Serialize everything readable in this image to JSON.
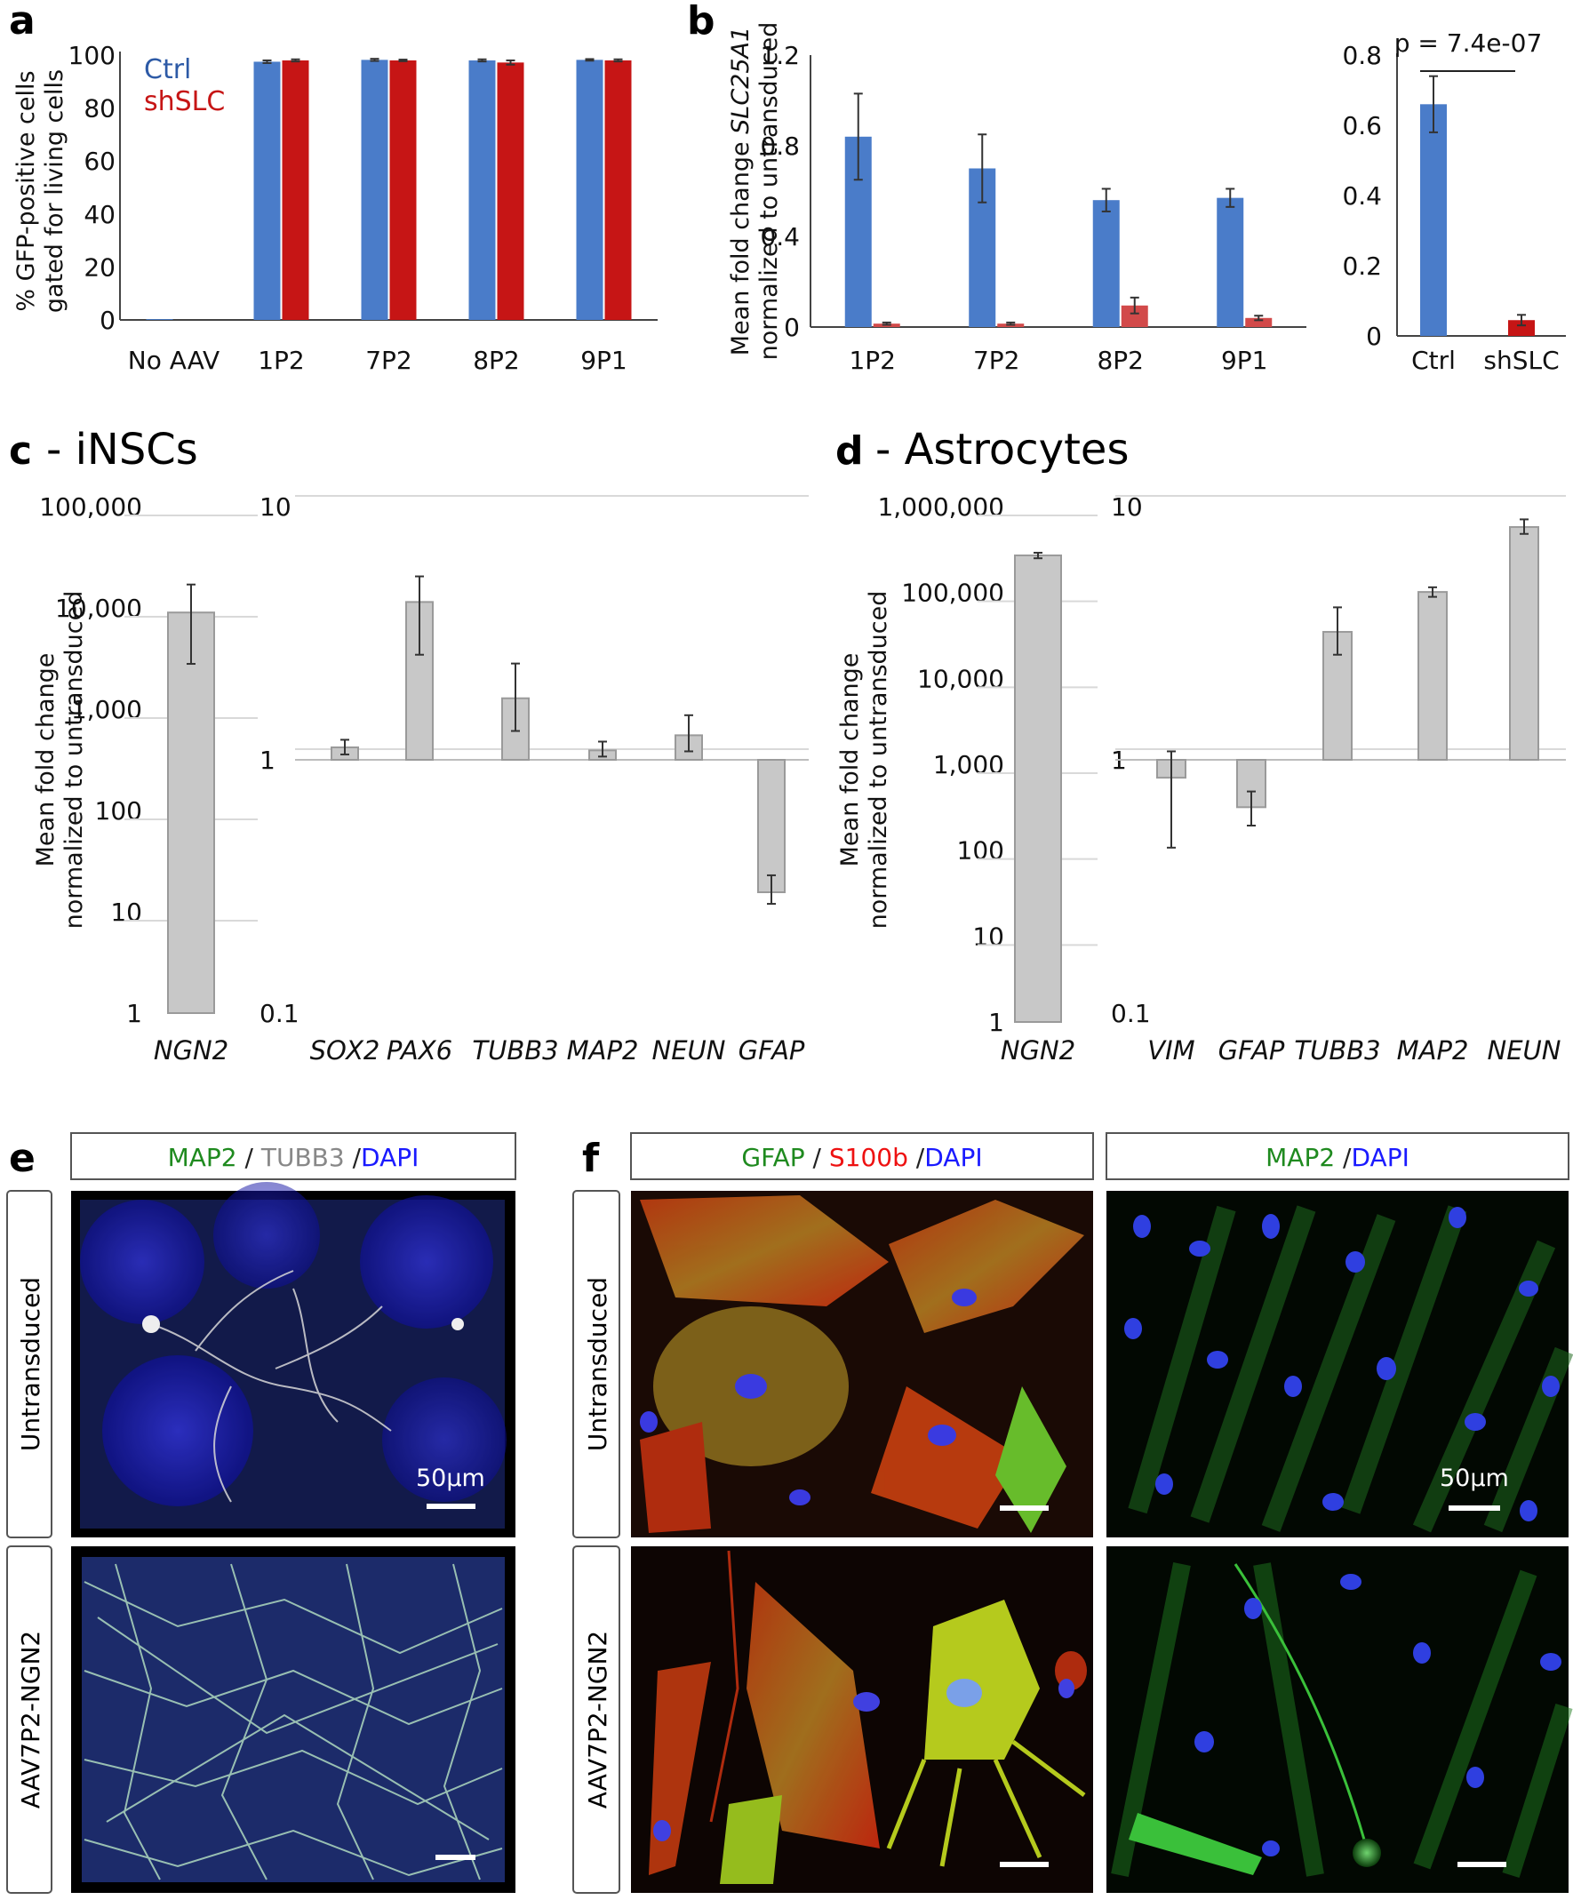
{
  "panel_letters": {
    "a": "a",
    "b": "b",
    "c": "c",
    "d": "d",
    "e": "e",
    "f": "f"
  },
  "titles": {
    "c": "- iNSCs",
    "d": "- Astrocytes"
  },
  "colors": {
    "ctrl": "#4a7cc9",
    "shslc": "#c61515",
    "shslc_light": "#d24a4a",
    "gray_bar": "#c8c8c8",
    "grid": "#d9d9d9",
    "dapi": "#1a1aff",
    "map2": "#1f8a1f",
    "tubb3": "#888888",
    "s100b": "#ee1111",
    "gfap": "#1f8a1f"
  },
  "chart_data": [
    {
      "id": "a",
      "type": "bar",
      "ylabel": "% GFP-positive cells gated for living cells",
      "ylabel_lines": [
        "% GFP-positive cells",
        "gated for living cells"
      ],
      "categories": [
        "No AAV",
        "1P2",
        "7P2",
        "8P2",
        "9P1"
      ],
      "ylim": [
        0,
        100
      ],
      "yticks": [
        "0",
        "20",
        "40",
        "60",
        "80",
        "100"
      ],
      "series": [
        {
          "name": "Ctrl",
          "values": [
            0.3,
            97.5,
            98.2,
            98.0,
            98.2
          ],
          "errors": [
            0,
            0.5,
            0.4,
            0.4,
            0.3
          ]
        },
        {
          "name": "shSLC",
          "values": [
            0,
            98.0,
            98.0,
            97.2,
            98.0
          ],
          "errors": [
            0,
            0.4,
            0.3,
            0.8,
            0.4
          ]
        }
      ]
    },
    {
      "id": "b_left",
      "type": "bar",
      "ylabel": "Mean fold change SLC25A1 normalized to untransduced",
      "ylabel_parts": [
        "Mean fold change ",
        "SLC25A1"
      ],
      "ylabel_line2": "normalized to untransduced",
      "categories": [
        "1P2",
        "7P2",
        "8P2",
        "9P1"
      ],
      "ylim": [
        0,
        1.2
      ],
      "yticks": [
        "0",
        "0.4",
        "0.8",
        "1.2"
      ],
      "series": [
        {
          "name": "Ctrl",
          "values": [
            0.84,
            0.7,
            0.56,
            0.57
          ],
          "errors": [
            0.19,
            0.15,
            0.05,
            0.04
          ]
        },
        {
          "name": "shSLC",
          "values": [
            0.015,
            0.015,
            0.095,
            0.04
          ],
          "errors": [
            0.005,
            0.005,
            0.035,
            0.01
          ]
        }
      ]
    },
    {
      "id": "b_right",
      "type": "bar",
      "categories": [
        "Ctrl",
        "shSLC"
      ],
      "values": [
        0.66,
        0.045
      ],
      "errors": [
        0.08,
        0.015
      ],
      "ylim": [
        0,
        0.8
      ],
      "yticks": [
        "0",
        "0.2",
        "0.4",
        "0.6",
        "0.8"
      ],
      "annotation": "p = 7.4e-07"
    },
    {
      "id": "c_left",
      "type": "bar",
      "scale": "log",
      "ylabel": "Mean fold change normalized to untransduced",
      "ylabel_lines": [
        "Mean fold change",
        "normalized to untransduced"
      ],
      "categories": [
        "NGN2"
      ],
      "values": [
        9000
      ],
      "errors_lo": [
        2800
      ],
      "errors_hi": [
        17000
      ],
      "ylim": [
        1,
        100000
      ],
      "yticks": [
        "1",
        "10",
        "100",
        "1,000",
        "10,000",
        "100,000"
      ]
    },
    {
      "id": "c_right",
      "type": "bar",
      "scale": "log",
      "categories": [
        "SOX2",
        "PAX6",
        "TUBB3",
        "MAP2",
        "NEUN",
        "GFAP"
      ],
      "values": [
        1.12,
        4.2,
        1.75,
        1.09,
        1.25,
        0.3
      ],
      "errors_lo": [
        1.05,
        2.6,
        1.3,
        1.03,
        1.08,
        0.27
      ],
      "errors_hi": [
        1.2,
        5.3,
        2.4,
        1.18,
        1.5,
        0.35
      ],
      "ylim": [
        0.1,
        10
      ],
      "yticks": [
        "0.1",
        "1",
        "10"
      ]
    },
    {
      "id": "d_left",
      "type": "bar",
      "scale": "log",
      "ylabel": "Mean fold change normalized to untransduced",
      "ylabel_lines": [
        "Mean fold change",
        "normalized to untransduced"
      ],
      "categories": [
        "NGN2"
      ],
      "values": [
        270000
      ],
      "errors_lo": [
        250000
      ],
      "errors_hi": [
        290000
      ],
      "ylim": [
        1,
        1000000
      ],
      "yticks": [
        "1",
        "10",
        "100",
        "1,000",
        "10,000",
        "100,000",
        "1,000,000"
      ]
    },
    {
      "id": "d_right",
      "type": "bar",
      "scale": "log",
      "categories": [
        "VIM",
        "GFAP",
        "TUBB3",
        "MAP2",
        "NEUN"
      ],
      "values": [
        0.85,
        0.65,
        3.2,
        4.6,
        8.3
      ],
      "errors_lo": [
        0.45,
        0.55,
        2.6,
        4.4,
        7.8
      ],
      "errors_hi": [
        1.08,
        0.75,
        4.0,
        4.8,
        8.9
      ],
      "ylim": [
        0.1,
        10
      ],
      "yticks": [
        "0.1",
        "1",
        "10"
      ]
    }
  ],
  "panel_e": {
    "header": {
      "map2": "MAP2",
      "sep1": " / ",
      "tubb3": "TUBB3",
      "sep2": " /",
      "dapi": "DAPI"
    },
    "rows": [
      "Untransduced",
      "AAV7P2-NGN2"
    ],
    "scale_label": "50µm"
  },
  "panel_f": {
    "header_left": {
      "gfap": "GFAP",
      "sep1": " / ",
      "s100b": "S100b",
      "sep2": " /",
      "dapi": "DAPI"
    },
    "header_right": {
      "map2": "MAP2",
      "sep": " /",
      "dapi": "DAPI"
    },
    "rows": [
      "Untransduced",
      "AAV7P2-NGN2"
    ],
    "scale_label": "50µm"
  }
}
